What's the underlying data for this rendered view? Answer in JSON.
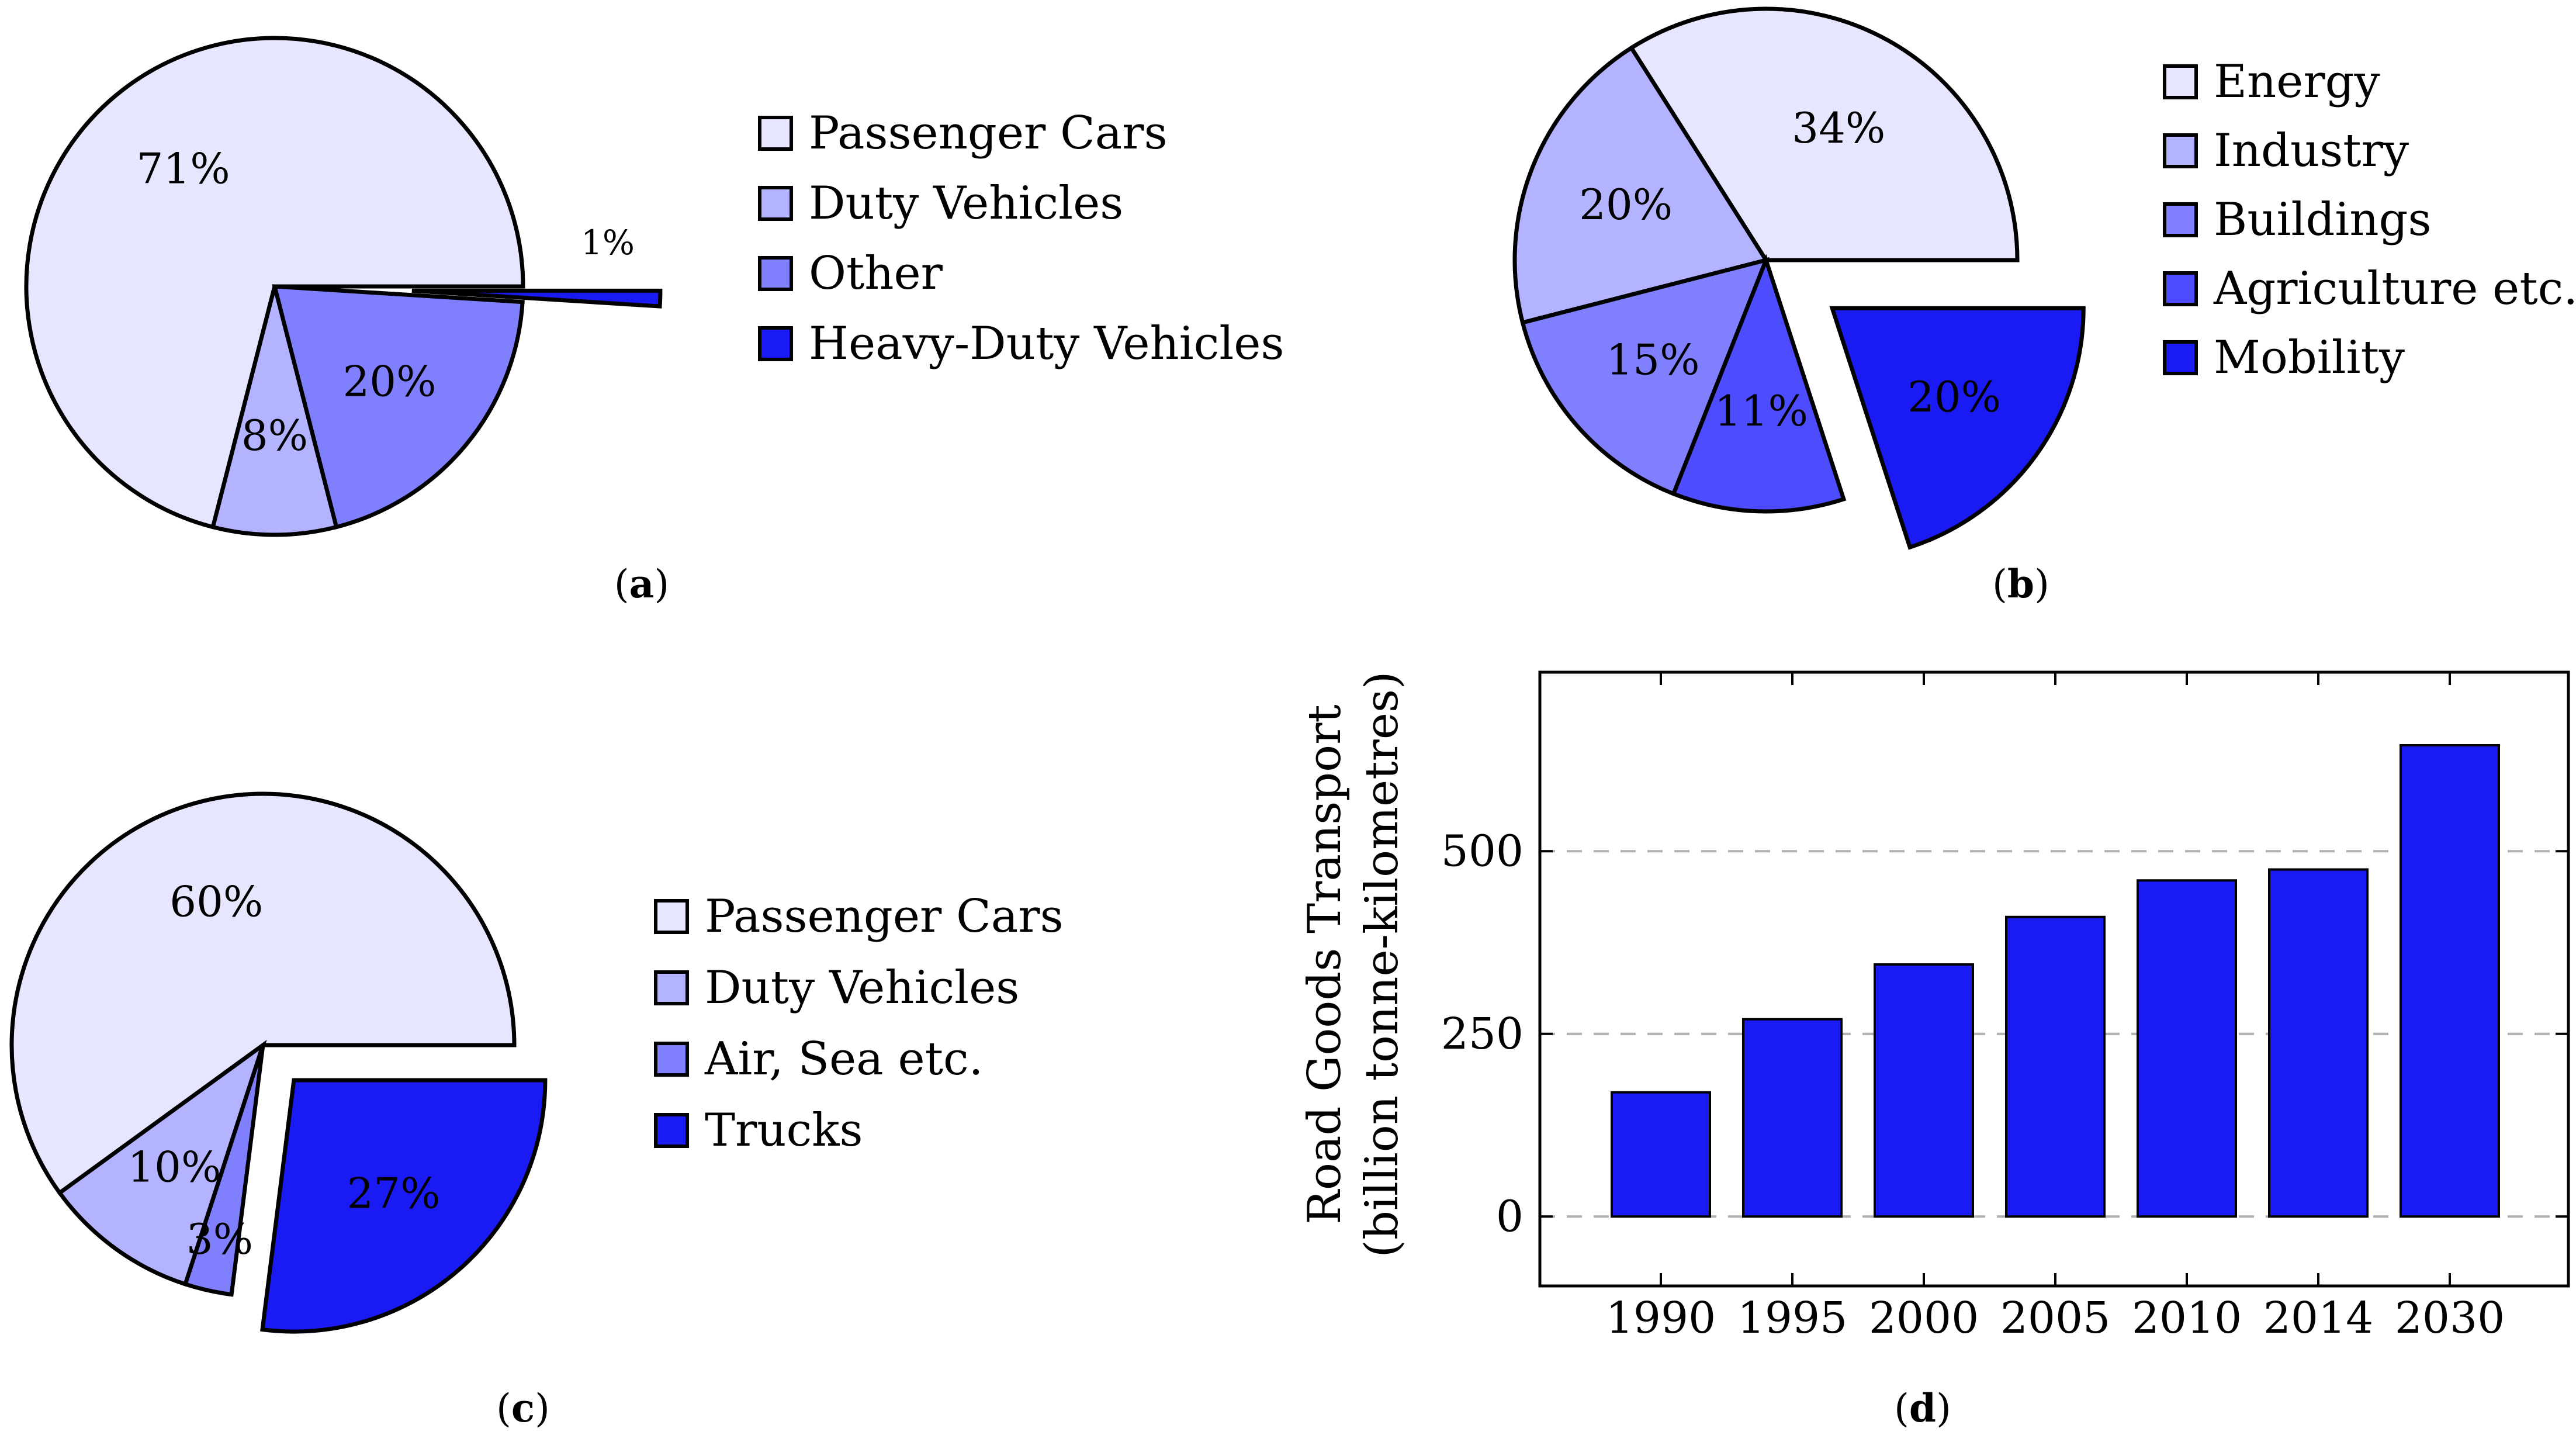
{
  "chart_data": [
    {
      "type": "pie",
      "caption": "a",
      "legend": [
        "Passenger Cars",
        "Duty Vehicles",
        "Other",
        "Heavy-Duty Vehicles"
      ],
      "slices": [
        {
          "name": "Passenger Cars",
          "value": 71,
          "label": "71%",
          "color": "#E6E6FF",
          "exploded": false
        },
        {
          "name": "Duty Vehicles",
          "value": 8,
          "label": "8%",
          "color": "#B3B3FF",
          "exploded": false
        },
        {
          "name": "Other",
          "value": 20,
          "label": "20%",
          "color": "#8080FF",
          "exploded": false
        },
        {
          "name": "Heavy-Duty Vehicles",
          "value": 1,
          "label": "1%",
          "color": "#1A1AF5",
          "exploded": true
        }
      ]
    },
    {
      "type": "pie",
      "caption": "b",
      "legend": [
        "Energy",
        "Industry",
        "Buildings",
        "Agriculture etc.",
        "Mobility"
      ],
      "slices": [
        {
          "name": "Energy",
          "value": 34,
          "label": "34%",
          "color": "#E6E6FF",
          "exploded": false
        },
        {
          "name": "Industry",
          "value": 20,
          "label": "20%",
          "color": "#B3B3FF",
          "exploded": false
        },
        {
          "name": "Buildings",
          "value": 15,
          "label": "15%",
          "color": "#8080FF",
          "exploded": false
        },
        {
          "name": "Agriculture etc.",
          "value": 11,
          "label": "11%",
          "color": "#4D4DFF",
          "exploded": false
        },
        {
          "name": "Mobility",
          "value": 20,
          "label": "20%",
          "color": "#1A1AF5",
          "exploded": true
        }
      ]
    },
    {
      "type": "pie",
      "caption": "c",
      "legend": [
        "Passenger Cars",
        "Duty Vehicles",
        "Air, Sea etc.",
        "Trucks"
      ],
      "slices": [
        {
          "name": "Passenger Cars",
          "value": 60,
          "label": "60%",
          "color": "#E6E6FF",
          "exploded": false
        },
        {
          "name": "Duty Vehicles",
          "value": 10,
          "label": "10%",
          "color": "#B3B3FF",
          "exploded": false
        },
        {
          "name": "Air, Sea etc.",
          "value": 3,
          "label": "3%",
          "color": "#8080FF",
          "exploded": false
        },
        {
          "name": "Trucks",
          "value": 27,
          "label": "27%",
          "color": "#1A1AF5",
          "exploded": true
        }
      ]
    },
    {
      "type": "bar",
      "caption": "d",
      "categories": [
        "1990",
        "1995",
        "2000",
        "2005",
        "2010",
        "2014",
        "2030"
      ],
      "values": [
        170,
        270,
        345,
        410,
        460,
        475,
        645
      ],
      "ylabel": [
        "Road Goods Transport",
        "(billion tonne-kilometres)"
      ],
      "yticks": [
        0,
        250,
        500
      ],
      "ylim": [
        -95,
        745
      ],
      "grid": "y dashed",
      "color": "#1A1AF5"
    }
  ]
}
